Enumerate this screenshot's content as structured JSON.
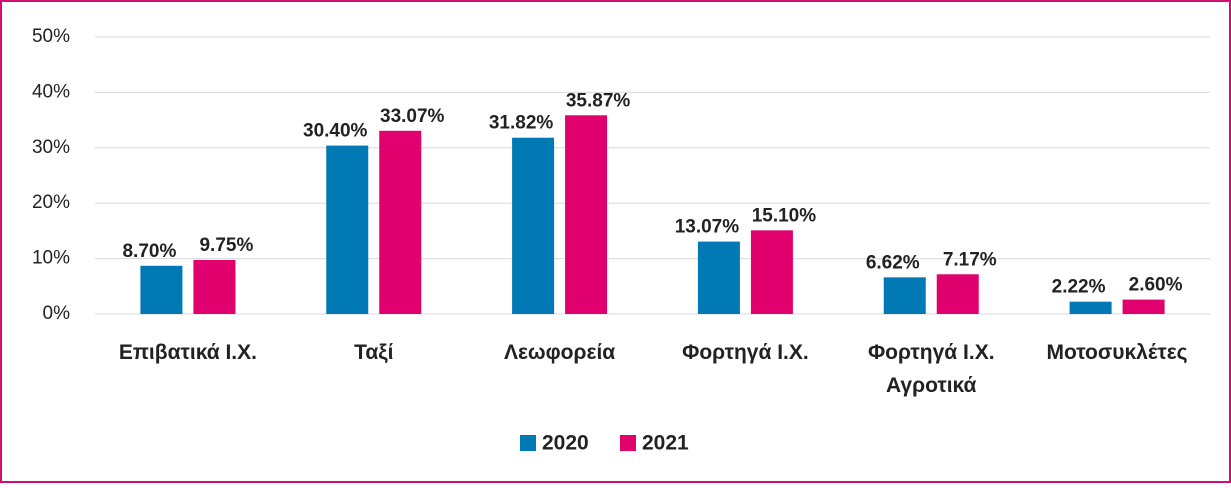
{
  "chart_data": {
    "type": "bar",
    "categories": [
      "Επιβατικά Ι.Χ.",
      "Ταξί",
      "Λεωφορεία",
      "Φορτηγά Ι.Χ.",
      "Φορτηγά Ι.Χ. Αγροτικά",
      "Μοτοσυκλέτες"
    ],
    "series": [
      {
        "name": "2020",
        "color": "#0079b4",
        "values": [
          8.7,
          30.4,
          31.82,
          13.07,
          6.62,
          2.22
        ],
        "value_labels": [
          "8.70%",
          "30.40%",
          "31.82%",
          "13.07%",
          "6.62%",
          "2.22%"
        ]
      },
      {
        "name": "2021",
        "color": "#e0006e",
        "values": [
          9.75,
          33.07,
          35.87,
          15.1,
          7.17,
          2.6
        ],
        "value_labels": [
          "9.75%",
          "33.07%",
          "35.87%",
          "15.10%",
          "7.17%",
          "2.60%"
        ]
      }
    ],
    "ylim": [
      0,
      50
    ],
    "yticks": [
      {
        "value": 0,
        "label": "0%"
      },
      {
        "value": 10,
        "label": "10%"
      },
      {
        "value": 20,
        "label": "20%"
      },
      {
        "value": 30,
        "label": "30%"
      },
      {
        "value": 40,
        "label": "40%"
      },
      {
        "value": 50,
        "label": "50%"
      }
    ],
    "grid": true,
    "legend": "bottom"
  }
}
